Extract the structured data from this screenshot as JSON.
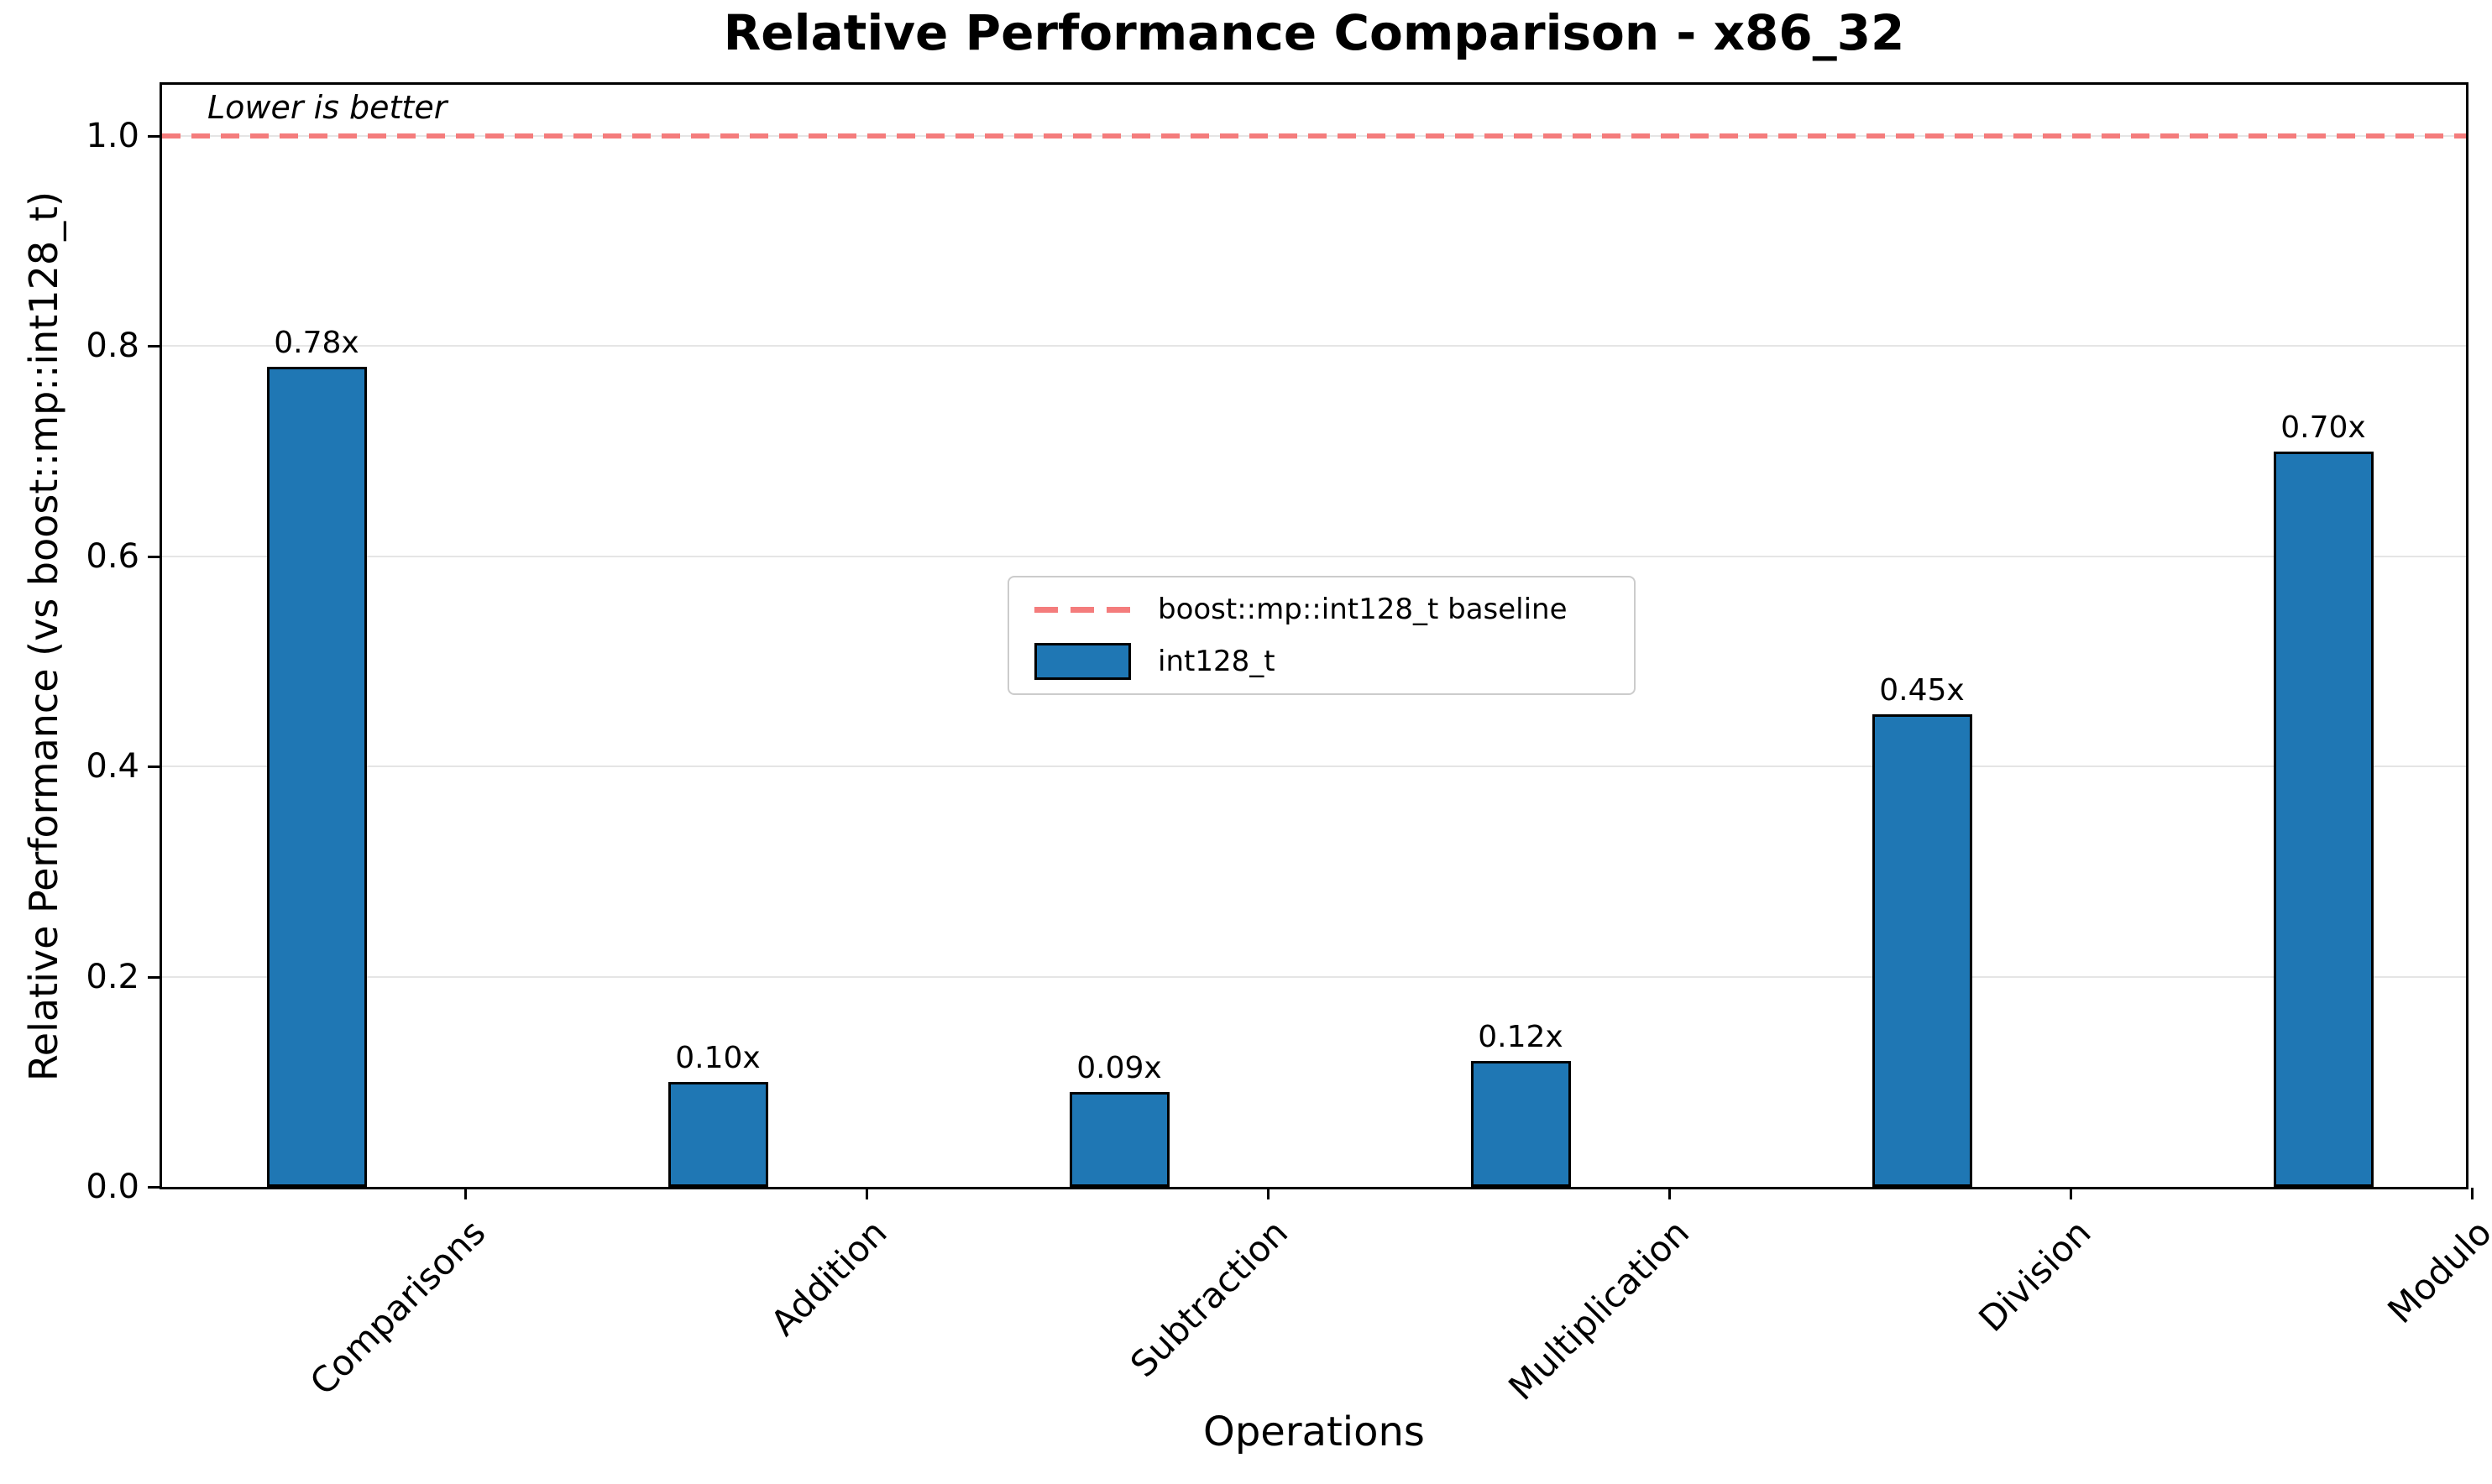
{
  "chart_data": {
    "type": "bar",
    "title": "Relative Performance Comparison - x86_32",
    "xlabel": "Operations",
    "ylabel": "Relative Performance (vs boost::mp::int128_t)",
    "annotation": "Lower is better",
    "categories": [
      "Comparisons",
      "Addition",
      "Subtraction",
      "Multiplication",
      "Division",
      "Modulo"
    ],
    "values": [
      0.78,
      0.1,
      0.09,
      0.12,
      0.45,
      0.7
    ],
    "bar_value_labels": [
      "0.78x",
      "0.10x",
      "0.09x",
      "0.12x",
      "0.45x",
      "0.70x"
    ],
    "series_label": "int128_t",
    "baseline": {
      "value": 1.0,
      "label": "boost::mp::int128_t baseline"
    },
    "y_ticks": {
      "values": [
        0.0,
        0.2,
        0.4,
        0.6,
        0.8,
        1.0
      ],
      "labels": [
        "0.0",
        "0.2",
        "0.4",
        "0.6",
        "0.8",
        "1.0"
      ]
    },
    "ylim": [
      0.0,
      1.05
    ],
    "grid": true,
    "legend_position": "upper-center-inside",
    "colors": {
      "bar_fill": "#1f77b4",
      "bar_edge": "#000000",
      "baseline_line": "#f47c7c",
      "gridline": "#e5e5e5",
      "legend_border": "#cccccc",
      "text": "#000000"
    }
  }
}
